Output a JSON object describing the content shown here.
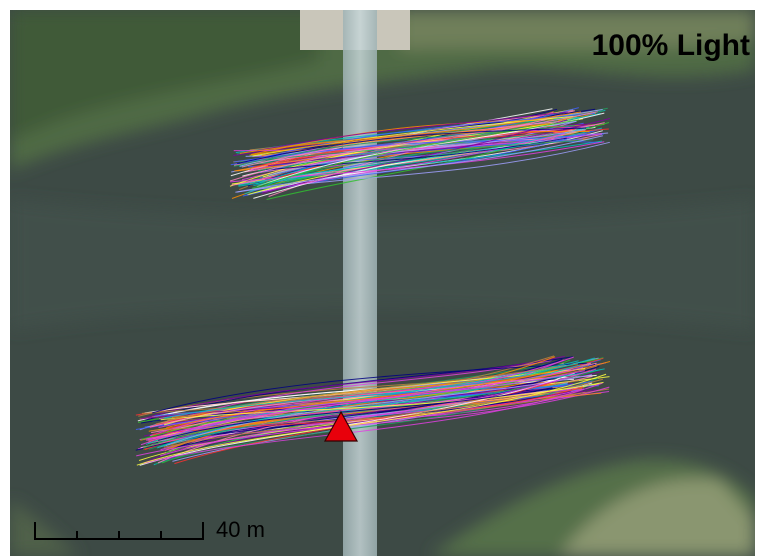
{
  "title": "100% Light",
  "scale_bar": {
    "label": "40 m"
  }
}
